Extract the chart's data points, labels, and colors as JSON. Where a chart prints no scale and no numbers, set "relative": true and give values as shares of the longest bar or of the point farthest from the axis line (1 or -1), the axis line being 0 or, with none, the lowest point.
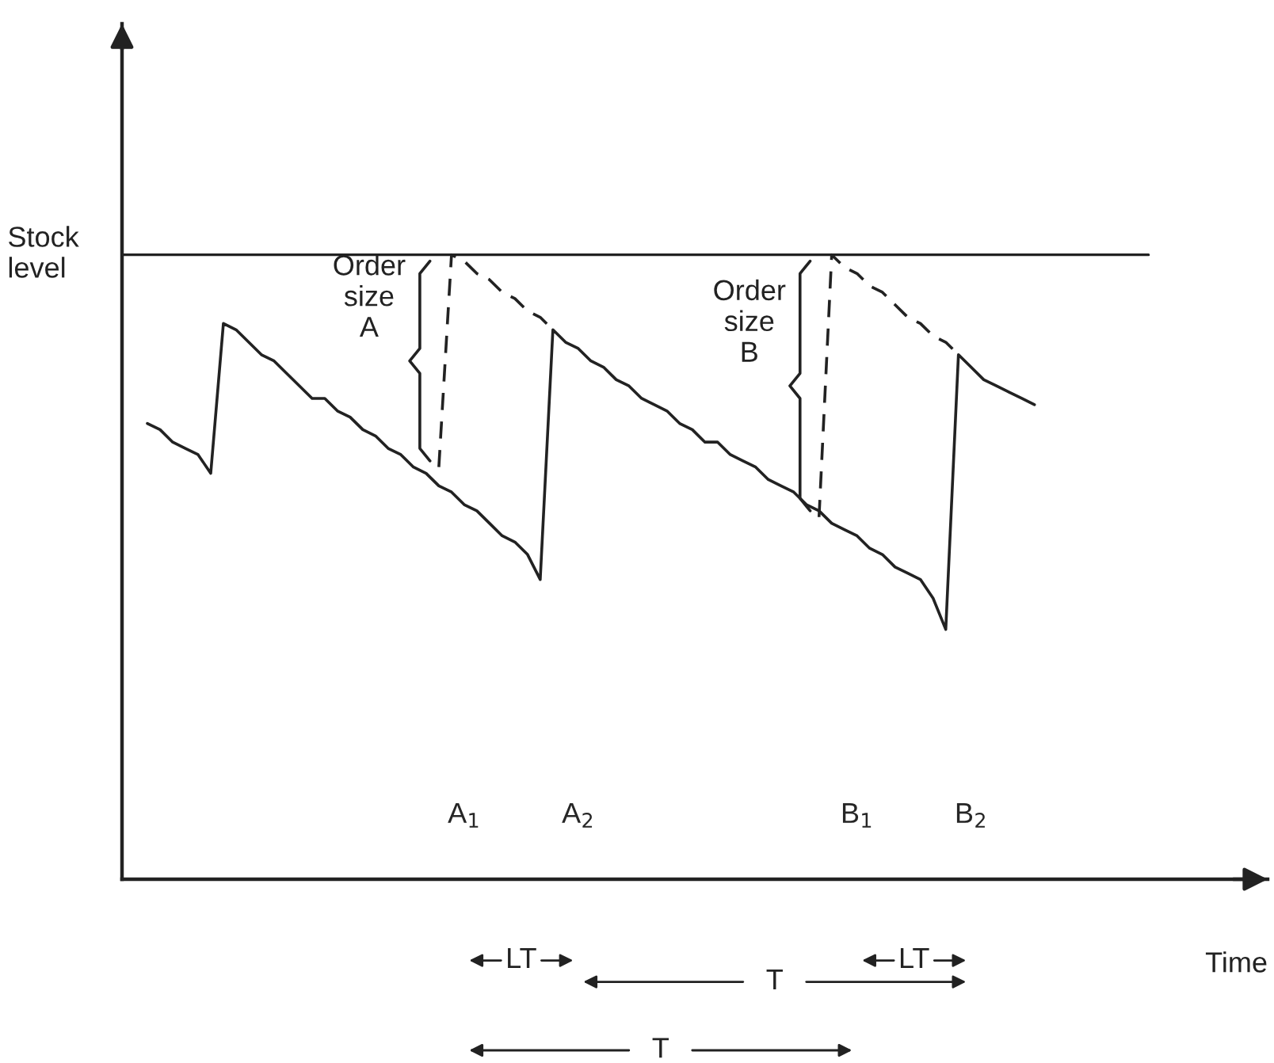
{
  "chart_data": {
    "type": "line",
    "relative": true,
    "xlabel": "Time",
    "ylabel": "Stock\nlevel",
    "categories": [
      null,
      null,
      null,
      null,
      null,
      null,
      null,
      null,
      null,
      null,
      null,
      null,
      null,
      null,
      null,
      null,
      null,
      null,
      null,
      null,
      null,
      null,
      null,
      null,
      null,
      null,
      null,
      "A$_{1}$",
      null,
      null,
      null,
      null,
      null,
      null,
      null,
      null,
      "A$_{2}$",
      null,
      null,
      null,
      null,
      null,
      null,
      null,
      null,
      null,
      null,
      null,
      null,
      null,
      null,
      null,
      null,
      null,
      null,
      null,
      null,
      null,
      "B$_{1}$",
      null,
      null,
      null,
      null,
      null,
      null,
      null,
      null,
      "B$_{2}$",
      null,
      null,
      null,
      null,
      null,
      null,
      null,
      null,
      null,
      null,
      null,
      null,
      null,
      null,
      null,
      null,
      null,
      null,
      null,
      null,
      null,
      null,
      null
    ],
    "ref_lines": [
      {
        "axis": "y",
        "value": 1,
        "color": "#222222"
      }
    ],
    "series": [
      {
        "color": "#222222",
        "line_style": "solid",
        "values": [
          null,
          null,
          0.73,
          0.72,
          0.7,
          0.69,
          0.68,
          0.65,
          0.89,
          0.88,
          0.86,
          0.84,
          0.83,
          0.81,
          0.79,
          0.77,
          0.77,
          0.75,
          0.74,
          0.72,
          0.71,
          0.69,
          0.68,
          0.66,
          0.65,
          0.63,
          0.62,
          0.6,
          0.59,
          0.57,
          0.55,
          0.54,
          0.52,
          0.48,
          0.88,
          0.86,
          0.85,
          0.83,
          0.82,
          0.8,
          0.79,
          0.77,
          0.76,
          0.75,
          0.73,
          0.72,
          0.7,
          0.7,
          0.68,
          0.67,
          0.66,
          0.64,
          0.63,
          0.62,
          0.6,
          0.59,
          0.57,
          0.56,
          0.55,
          0.53,
          0.52,
          0.5,
          0.49,
          0.48,
          0.45,
          0.4,
          0.84,
          0.82,
          0.8,
          0.79,
          0.78,
          0.77,
          0.76,
          null,
          null,
          null,
          null,
          null,
          null,
          null,
          null,
          null,
          null,
          null,
          null,
          null,
          null,
          null,
          null,
          null,
          null
        ]
      },
      {
        "color": "#222222",
        "line_style": "dashed",
        "values": [
          null,
          null,
          null,
          null,
          null,
          null,
          null,
          null,
          null,
          null,
          null,
          null,
          null,
          null,
          null,
          null,
          null,
          null,
          null,
          null,
          null,
          null,
          null,
          null,
          null,
          0.66,
          1.0,
          0.99,
          0.97,
          0.96,
          0.94,
          0.93,
          0.91,
          0.9,
          0.88,
          null,
          null,
          null,
          null,
          null,
          null,
          null,
          null,
          null,
          null,
          null,
          null,
          null,
          null,
          null,
          null,
          null,
          null,
          null,
          null,
          null,
          null,
          null,
          null,
          null,
          null,
          null,
          null,
          null,
          null,
          null,
          null,
          null,
          null,
          null,
          null,
          null,
          null,
          null,
          null,
          null,
          null,
          null,
          null,
          null,
          null,
          null,
          null,
          null,
          null,
          null,
          null,
          null,
          null,
          null,
          null
        ]
      },
      {
        "color": "#222222",
        "line_style": "dashed",
        "values": [
          null,
          null,
          null,
          null,
          null,
          null,
          null,
          null,
          null,
          null,
          null,
          null,
          null,
          null,
          null,
          null,
          null,
          null,
          null,
          null,
          null,
          null,
          null,
          null,
          null,
          null,
          null,
          null,
          null,
          null,
          null,
          null,
          null,
          null,
          null,
          null,
          null,
          null,
          null,
          null,
          null,
          null,
          null,
          null,
          null,
          null,
          null,
          null,
          null,
          null,
          null,
          null,
          null,
          null,
          null,
          0.58,
          1.0,
          0.98,
          0.97,
          0.95,
          0.94,
          0.92,
          0.9,
          0.89,
          0.87,
          0.86,
          0.84,
          null,
          null,
          null,
          null,
          null,
          null,
          null,
          null,
          null,
          null,
          null,
          null,
          null,
          null,
          null,
          null,
          null,
          null,
          null,
          null,
          null,
          null,
          null,
          null
        ]
      }
    ],
    "annotations": [
      "Order\nsize\nA",
      "Order\nsize\nB",
      "LT",
      "LT",
      "T",
      "T"
    ]
  }
}
